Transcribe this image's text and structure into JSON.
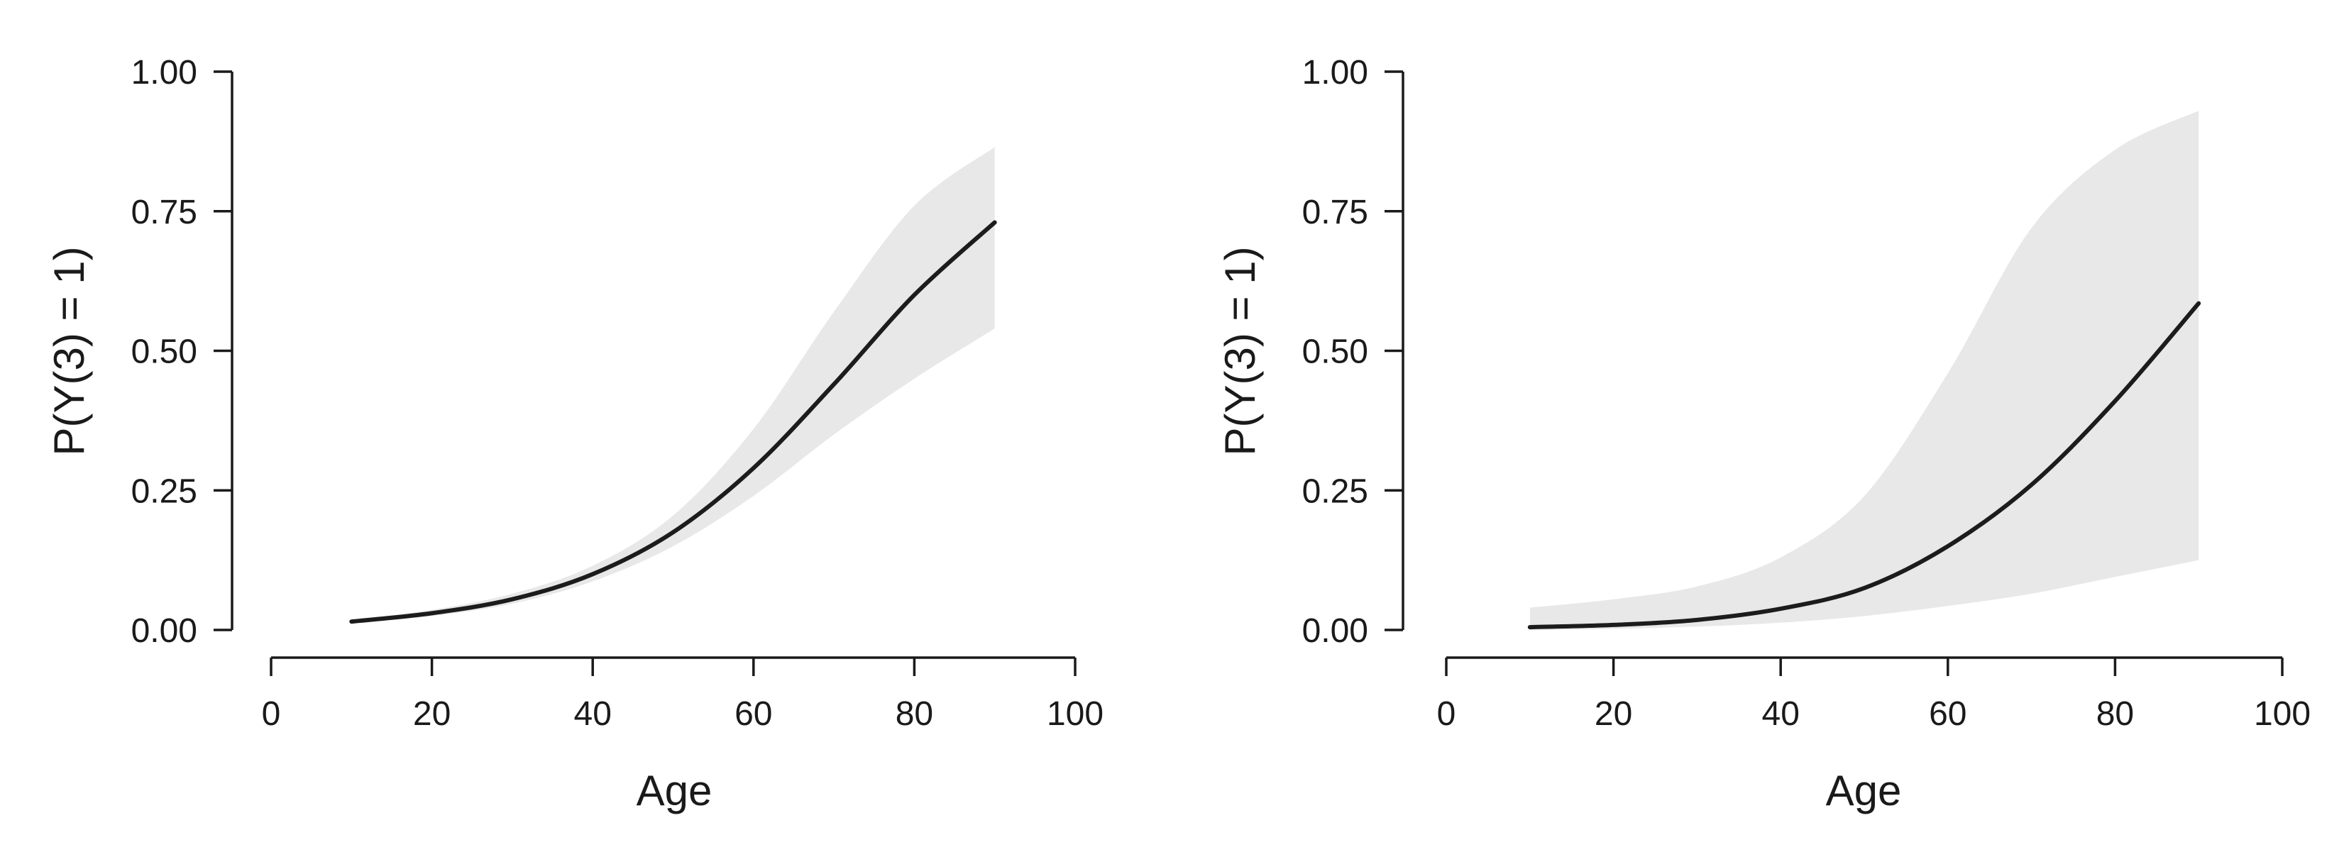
{
  "colors": {
    "line": "#1c1c1c",
    "band": "#e8e8e8",
    "axis": "#1a1a1a"
  },
  "chart_data": [
    {
      "type": "line",
      "title": "",
      "xlabel": "Age",
      "ylabel": "P(Y(3) = 1)",
      "xlim": [
        0,
        100
      ],
      "ylim": [
        0,
        1
      ],
      "xticks": [
        0,
        20,
        40,
        60,
        80,
        100
      ],
      "xtick_labels": [
        "0",
        "20",
        "40",
        "60",
        "80",
        "100"
      ],
      "yticks": [
        0,
        0.25,
        0.5,
        0.75,
        1
      ],
      "ytick_labels": [
        "0.00",
        "0.25",
        "0.50",
        "0.75",
        "1.00"
      ],
      "grid": false,
      "legend": "none",
      "series": [
        {
          "x": [
            10,
            20,
            30,
            40,
            50,
            60,
            70,
            80,
            90
          ],
          "y": [
            0.015,
            0.03,
            0.055,
            0.1,
            0.175,
            0.29,
            0.44,
            0.6,
            0.73
          ],
          "lower": [
            0.012,
            0.025,
            0.047,
            0.087,
            0.15,
            0.24,
            0.35,
            0.45,
            0.54
          ],
          "upper": [
            0.018,
            0.036,
            0.065,
            0.115,
            0.205,
            0.36,
            0.57,
            0.76,
            0.865
          ]
        }
      ]
    },
    {
      "type": "line",
      "title": "",
      "xlabel": "Age",
      "ylabel": "P(Y(3) = 1)",
      "xlim": [
        0,
        100
      ],
      "ylim": [
        0,
        1
      ],
      "xticks": [
        0,
        20,
        40,
        60,
        80,
        100
      ],
      "xtick_labels": [
        "0",
        "20",
        "40",
        "60",
        "80",
        "100"
      ],
      "yticks": [
        0,
        0.25,
        0.5,
        0.75,
        1
      ],
      "ytick_labels": [
        "0.00",
        "0.25",
        "0.50",
        "0.75",
        "1.00"
      ],
      "grid": false,
      "legend": "none",
      "series": [
        {
          "x": [
            10,
            20,
            30,
            40,
            50,
            60,
            70,
            80,
            90
          ],
          "y": [
            0.005,
            0.009,
            0.018,
            0.038,
            0.075,
            0.15,
            0.26,
            0.41,
            0.585
          ],
          "lower": [
            0.0,
            0.002,
            0.006,
            0.013,
            0.025,
            0.043,
            0.065,
            0.095,
            0.125
          ],
          "upper": [
            0.04,
            0.055,
            0.078,
            0.13,
            0.24,
            0.46,
            0.72,
            0.86,
            0.93
          ]
        }
      ]
    }
  ]
}
